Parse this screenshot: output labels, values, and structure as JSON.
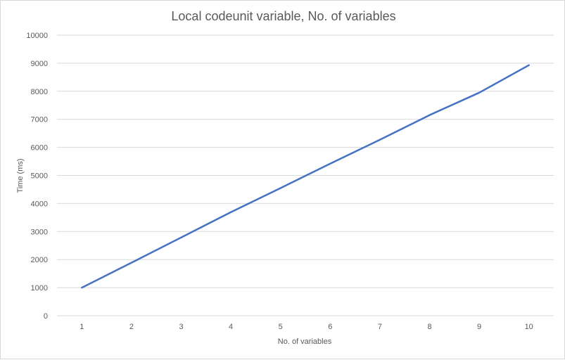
{
  "chart_data": {
    "type": "line",
    "title": "Local codeunit variable, No. of variables",
    "xlabel": "No. of variables",
    "ylabel": "Time (ms)",
    "categories": [
      "1",
      "2",
      "3",
      "4",
      "5",
      "6",
      "7",
      "8",
      "9",
      "10"
    ],
    "series": [
      {
        "values": [
          1000,
          1890,
          2790,
          3690,
          4550,
          5420,
          6270,
          7150,
          7950,
          8930
        ]
      }
    ],
    "ylim": [
      0,
      10000
    ],
    "yticks": [
      "0",
      "1000",
      "2000",
      "3000",
      "4000",
      "5000",
      "6000",
      "7000",
      "8000",
      "9000",
      "10000"
    ],
    "grid": true,
    "legend": "none",
    "colors": {
      "line": "#4472c4",
      "grid": "#d9d9d9",
      "text": "#595959"
    }
  }
}
